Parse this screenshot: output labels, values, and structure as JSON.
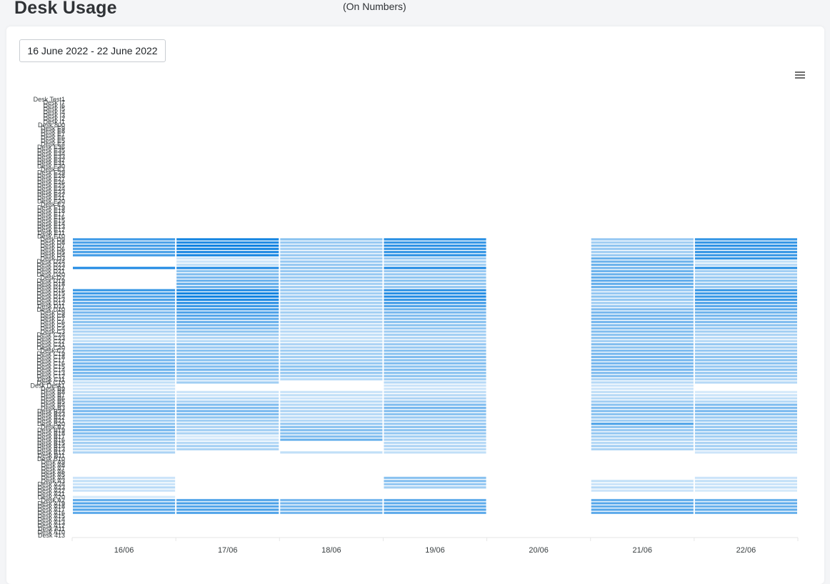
{
  "header": {
    "title": "Desk Usage",
    "subtitle": "(On Numbers)"
  },
  "filter": {
    "date_range": "16 June 2022 - 22 June 2022"
  },
  "toolbar": {
    "menu_icon": "hamburger-menu-icon"
  },
  "colors": {
    "base": "#0a7fe0",
    "empty": "#ffffff",
    "grid": "#e6e6e6"
  },
  "chart_data": {
    "type": "heatmap",
    "title": "",
    "xlabel": "",
    "ylabel": "",
    "legend": "none",
    "x": [
      "16/06",
      "17/06",
      "18/06",
      "19/06",
      "20/06",
      "21/06",
      "22/06"
    ],
    "rows": [
      "Desk Test1",
      "Desk I7",
      "Desk I6",
      "Desk I5",
      "Desk I4",
      "Desk I3",
      "Desk I2",
      "Desk I1",
      "Desk 800",
      "Desk E9",
      "Desk E8",
      "Desk E7",
      "Desk E6",
      "Desk E5",
      "Desk E4",
      "Desk E36",
      "Desk E35",
      "Desk E34",
      "Desk E33",
      "Desk E32",
      "Desk E31",
      "Desk E30",
      "Desk E3",
      "Desk E29",
      "Desk E28",
      "Desk E27",
      "Desk E26",
      "Desk E25",
      "Desk E24",
      "Desk E23",
      "Desk E22",
      "Desk E21",
      "Desk E20",
      "Desk E2",
      "Desk E19",
      "Desk E18",
      "Desk E17",
      "Desk E16",
      "Desk E15",
      "Desk E14",
      "Desk E13",
      "Desk E12",
      "Desk E11",
      "Desk E10",
      "Desk D9",
      "Desk D8",
      "Desk D7",
      "Desk D6",
      "Desk D5",
      "Desk D4",
      "Desk D3",
      "Desk D24",
      "Desk D23",
      "Desk D22",
      "Desk D21",
      "Desk D20",
      "Desk D2",
      "Desk D19",
      "Desk D18",
      "Desk D17",
      "Desk D16",
      "Desk D15",
      "Desk D14",
      "Desk D13",
      "Desk D12",
      "Desk D11",
      "Desk D10",
      "Desk C9",
      "Desk C8",
      "Desk C7",
      "Desk C6",
      "Desk C5",
      "Desk C4",
      "Desk C3",
      "Desk C24",
      "Desk C23",
      "Desk C22",
      "Desk C21",
      "Desk C20",
      "Desk C2",
      "Desk C19",
      "Desk C18",
      "Desk C17",
      "Desk C16",
      "Desk C15",
      "Desk C14",
      "Desk C13",
      "Desk C12",
      "Desk C11",
      "Desk C10",
      "Desk Desk1",
      "Desk B9",
      "Desk B8",
      "Desk B7",
      "Desk B6",
      "Desk B5",
      "Desk B4",
      "Desk B3",
      "Desk B24",
      "Desk B23",
      "Desk B22",
      "Desk B21",
      "Desk B20",
      "Desk B2",
      "Desk B19",
      "Desk B18",
      "Desk B17",
      "Desk B16",
      "Desk B15",
      "Desk B14",
      "Desk B13",
      "Desk B12",
      "Desk B11",
      "Desk B10",
      "Desk A9",
      "Desk A8",
      "Desk A7",
      "Desk A6",
      "Desk A5",
      "Desk A4",
      "Desk A3",
      "Desk A24",
      "Desk A23",
      "Desk A22",
      "Desk A21",
      "Desk A20",
      "Desk A2",
      "Desk A19",
      "Desk A18",
      "Desk A17",
      "Desk A16",
      "Desk A15",
      "Desk A14",
      "Desk A13",
      "Desk A12",
      "Desk A11",
      "Desk A10",
      "Desk 413"
    ],
    "values": [
      [
        0,
        0,
        0,
        0,
        0,
        0,
        0
      ],
      [
        0,
        0,
        0,
        0,
        0,
        0,
        0
      ],
      [
        0,
        0,
        0,
        0,
        0,
        0,
        0
      ],
      [
        0,
        0,
        0,
        0,
        0,
        0,
        0
      ],
      [
        0,
        0,
        0,
        0,
        0,
        0,
        0
      ],
      [
        0,
        0,
        0,
        0,
        0,
        0,
        0
      ],
      [
        0,
        0,
        0,
        0,
        0,
        0,
        0
      ],
      [
        0,
        0,
        0,
        0,
        0,
        0,
        0
      ],
      [
        0,
        0,
        0,
        0,
        0,
        0,
        0
      ],
      [
        0,
        0,
        0,
        0,
        0,
        0,
        0
      ],
      [
        0,
        0,
        0,
        0,
        0,
        0,
        0
      ],
      [
        0,
        0,
        0,
        0,
        0,
        0,
        0
      ],
      [
        0,
        0,
        0,
        0,
        0,
        0,
        0
      ],
      [
        0,
        0,
        0,
        0,
        0,
        0,
        0
      ],
      [
        0,
        0,
        0,
        0,
        0,
        0,
        0
      ],
      [
        0,
        0,
        0,
        0,
        0,
        0,
        0
      ],
      [
        0,
        0,
        0,
        0,
        0,
        0,
        0
      ],
      [
        0,
        0,
        0,
        0,
        0,
        0,
        0
      ],
      [
        0,
        0,
        0,
        0,
        0,
        0,
        0
      ],
      [
        0,
        0,
        0,
        0,
        0,
        0,
        0
      ],
      [
        0,
        0,
        0,
        0,
        0,
        0,
        0
      ],
      [
        0,
        0,
        0,
        0,
        0,
        0,
        0
      ],
      [
        0,
        0,
        0,
        0,
        0,
        0,
        0
      ],
      [
        0,
        0,
        0,
        0,
        0,
        0,
        0
      ],
      [
        0,
        0,
        0,
        0,
        0,
        0,
        0
      ],
      [
        0,
        0,
        0,
        0,
        0,
        0,
        0
      ],
      [
        0,
        0,
        0,
        0,
        0,
        0,
        0
      ],
      [
        0,
        0,
        0,
        0,
        0,
        0,
        0
      ],
      [
        0,
        0,
        0,
        0,
        0,
        0,
        0
      ],
      [
        0,
        0,
        0,
        0,
        0,
        0,
        0
      ],
      [
        0,
        0,
        0,
        0,
        0,
        0,
        0
      ],
      [
        0,
        0,
        0,
        0,
        0,
        0,
        0
      ],
      [
        0,
        0,
        0,
        0,
        0,
        0,
        0
      ],
      [
        0,
        0,
        0,
        0,
        0,
        0,
        0
      ],
      [
        0,
        0,
        0,
        0,
        0,
        0,
        0
      ],
      [
        0,
        0,
        0,
        0,
        0,
        0,
        0
      ],
      [
        0,
        0,
        0,
        0,
        0,
        0,
        0
      ],
      [
        0,
        0,
        0,
        0,
        0,
        0,
        0
      ],
      [
        0,
        0,
        0,
        0,
        0,
        0,
        0
      ],
      [
        0,
        0,
        0,
        0,
        0,
        0,
        0
      ],
      [
        0,
        0,
        0,
        0,
        0,
        0,
        0
      ],
      [
        0,
        0,
        0,
        0,
        0,
        0,
        0
      ],
      [
        0,
        0,
        0,
        0,
        0,
        0,
        0
      ],
      [
        0,
        0,
        0,
        0,
        0,
        0,
        0
      ],
      [
        0.75,
        0.95,
        0.4,
        0.85,
        0,
        0.35,
        0.8
      ],
      [
        0.7,
        0.9,
        0.35,
        0.8,
        0,
        0.3,
        0.8
      ],
      [
        0.75,
        1,
        0.35,
        0.85,
        0,
        0.4,
        0.85
      ],
      [
        0.7,
        0.95,
        0.3,
        0.8,
        0,
        0.35,
        0.75
      ],
      [
        0.7,
        0.9,
        0.3,
        0.8,
        0,
        0.3,
        0.8
      ],
      [
        0.75,
        0.95,
        0.35,
        0.85,
        0,
        0.35,
        0.8
      ],
      [
        0,
        0.1,
        0.3,
        0.35,
        0,
        0.55,
        0.8
      ],
      [
        0,
        0.1,
        0.35,
        0.3,
        0,
        0.55,
        0.15
      ],
      [
        0,
        0.15,
        0.35,
        0.3,
        0,
        0.55,
        0.2
      ],
      [
        0.9,
        0.9,
        0.4,
        0.9,
        0,
        0.5,
        0.85
      ],
      [
        0,
        0.4,
        0.35,
        0.35,
        0,
        0.55,
        0.3
      ],
      [
        0,
        0.45,
        0.35,
        0.35,
        0,
        0.55,
        0.3
      ],
      [
        0,
        0.5,
        0.35,
        0.4,
        0,
        0.6,
        0.35
      ],
      [
        0,
        0.55,
        0.35,
        0.4,
        0,
        0.6,
        0.4
      ],
      [
        0,
        0.6,
        0.3,
        0.4,
        0,
        0.6,
        0.4
      ],
      [
        0,
        0.55,
        0.3,
        0.35,
        0,
        0.55,
        0.35
      ],
      [
        0.8,
        0.9,
        0.35,
        0.85,
        0,
        0.35,
        0.8
      ],
      [
        0.75,
        0.95,
        0.3,
        0.85,
        0,
        0.35,
        0.75
      ],
      [
        0.7,
        1,
        0.35,
        0.9,
        0,
        0.4,
        0.8
      ],
      [
        0.7,
        0.9,
        0.3,
        0.8,
        0,
        0.35,
        0.75
      ],
      [
        0.65,
        0.85,
        0.3,
        0.75,
        0,
        0.3,
        0.7
      ],
      [
        0.6,
        0.8,
        0.3,
        0.7,
        0,
        0.35,
        0.65
      ],
      [
        0.55,
        0.75,
        0.25,
        0.55,
        0,
        0.45,
        0.6
      ],
      [
        0.5,
        0.7,
        0.3,
        0.5,
        0,
        0.5,
        0.55
      ],
      [
        0.45,
        0.65,
        0.25,
        0.45,
        0,
        0.5,
        0.5
      ],
      [
        0.4,
        0.6,
        0.25,
        0.45,
        0,
        0.5,
        0.45
      ],
      [
        0.4,
        0.55,
        0.25,
        0.4,
        0,
        0.5,
        0.45
      ],
      [
        0.35,
        0.5,
        0.2,
        0.4,
        0,
        0.45,
        0.4
      ],
      [
        0.3,
        0.45,
        0.2,
        0.35,
        0,
        0.45,
        0.35
      ],
      [
        0.25,
        0.4,
        0.2,
        0.3,
        0,
        0.45,
        0.3
      ],
      [
        0.2,
        0.3,
        0.15,
        0.3,
        0,
        0.4,
        0.25
      ],
      [
        0.15,
        0.25,
        0.15,
        0.25,
        0,
        0.4,
        0.2
      ],
      [
        0.15,
        0.2,
        0.15,
        0.25,
        0,
        0.3,
        0.2
      ],
      [
        0.35,
        0.4,
        0.25,
        0.35,
        0,
        0.45,
        0.35
      ],
      [
        0.35,
        0.35,
        0.25,
        0.35,
        0,
        0.4,
        0.3
      ],
      [
        0.4,
        0.4,
        0.3,
        0.4,
        0,
        0.45,
        0.35
      ],
      [
        0.45,
        0.4,
        0.3,
        0.4,
        0,
        0.5,
        0.35
      ],
      [
        0.45,
        0.45,
        0.3,
        0.45,
        0,
        0.5,
        0.4
      ],
      [
        0.5,
        0.4,
        0.3,
        0.4,
        0,
        0.5,
        0.4
      ],
      [
        0.5,
        0.45,
        0.35,
        0.45,
        0,
        0.5,
        0.4
      ],
      [
        0.55,
        0.45,
        0.4,
        0.4,
        0,
        0.5,
        0.35
      ],
      [
        0.55,
        0.5,
        0.4,
        0.45,
        0,
        0.5,
        0.4
      ],
      [
        0.5,
        0.4,
        0.35,
        0.4,
        0,
        0.45,
        0.35
      ],
      [
        0.45,
        0.4,
        0.3,
        0.4,
        0,
        0.45,
        0.35
      ],
      [
        0.3,
        0.25,
        0.2,
        0.3,
        0,
        0.25,
        0.25
      ],
      [
        0.15,
        0.3,
        0,
        0.2,
        0,
        0.2,
        0.2
      ],
      [
        0.1,
        0,
        0,
        0.1,
        0,
        0.1,
        0
      ],
      [
        0.1,
        0,
        0,
        0.1,
        0,
        0.1,
        0
      ],
      [
        0.15,
        0.1,
        0.1,
        0.15,
        0,
        0.15,
        0.05
      ],
      [
        0.2,
        0.1,
        0.15,
        0.2,
        0,
        0.2,
        0.1
      ],
      [
        0.3,
        0.2,
        0.1,
        0.25,
        0,
        0.2,
        0.15
      ],
      [
        0.35,
        0.25,
        0.2,
        0.3,
        0,
        0.3,
        0.2
      ],
      [
        0.4,
        0.45,
        0.2,
        0.45,
        0,
        0.4,
        0.45
      ],
      [
        0.45,
        0.45,
        0.25,
        0.5,
        0,
        0.45,
        0.45
      ],
      [
        0.5,
        0.5,
        0.25,
        0.45,
        0,
        0.45,
        0.5
      ],
      [
        0.45,
        0.45,
        0.2,
        0.4,
        0,
        0.4,
        0.4
      ],
      [
        0.35,
        0.4,
        0.2,
        0.35,
        0,
        0.35,
        0.35
      ],
      [
        0.3,
        0.3,
        0.2,
        0.3,
        0,
        0.3,
        0.3
      ],
      [
        0.4,
        0.3,
        0.35,
        0.35,
        0,
        0.7,
        0.35
      ],
      [
        0.45,
        0.25,
        0.4,
        0.4,
        0,
        0.4,
        0.35
      ],
      [
        0.5,
        0.3,
        0.45,
        0.4,
        0,
        0.35,
        0.4
      ],
      [
        0.45,
        0.25,
        0.4,
        0.35,
        0,
        0.35,
        0.35
      ],
      [
        0.35,
        0.05,
        0.45,
        0.3,
        0,
        0.3,
        0.3
      ],
      [
        0.3,
        0.1,
        0.55,
        0.25,
        0,
        0.25,
        0.25
      ],
      [
        0.3,
        0.2,
        0,
        0.2,
        0,
        0.2,
        0.25
      ],
      [
        0.25,
        0.3,
        0,
        0.25,
        0,
        0.3,
        0.3
      ],
      [
        0.2,
        0.25,
        0,
        0.2,
        0,
        0.25,
        0.25
      ],
      [
        0.25,
        0,
        0.15,
        0.15,
        0,
        0,
        0.1
      ],
      [
        0,
        0,
        0,
        0,
        0,
        0,
        0
      ],
      [
        0,
        0,
        0,
        0,
        0,
        0,
        0
      ],
      [
        0,
        0,
        0,
        0,
        0,
        0,
        0
      ],
      [
        0,
        0,
        0,
        0,
        0,
        0,
        0
      ],
      [
        0,
        0,
        0,
        0,
        0,
        0,
        0
      ],
      [
        0,
        0,
        0,
        0,
        0,
        0,
        0
      ],
      [
        0,
        0,
        0,
        0,
        0,
        0,
        0
      ],
      [
        0.1,
        0,
        0,
        0.4,
        0,
        0,
        0.1
      ],
      [
        0.15,
        0,
        0,
        0.45,
        0,
        0.15,
        0.15
      ],
      [
        0.1,
        0,
        0,
        0.35,
        0,
        0.1,
        0.1
      ],
      [
        0.2,
        0,
        0,
        0.3,
        0,
        0.2,
        0.15
      ],
      [
        0.1,
        0,
        0,
        0,
        0,
        0.1,
        0.05
      ],
      [
        0,
        0,
        0,
        0,
        0,
        0,
        0
      ],
      [
        0.05,
        0,
        0,
        0,
        0,
        0,
        0
      ],
      [
        0.6,
        0.65,
        0.5,
        0.6,
        0,
        0.6,
        0.55
      ],
      [
        0.65,
        0.7,
        0.5,
        0.6,
        0,
        0.65,
        0.6
      ],
      [
        0.6,
        0.65,
        0.5,
        0.6,
        0,
        0.6,
        0.55
      ],
      [
        0.65,
        0.7,
        0.55,
        0.65,
        0,
        0.65,
        0.6
      ],
      [
        0.6,
        0.65,
        0.5,
        0.6,
        0,
        0.6,
        0.55
      ],
      [
        0,
        0,
        0,
        0,
        0,
        0,
        0
      ],
      [
        0,
        0,
        0,
        0,
        0,
        0,
        0
      ],
      [
        0,
        0,
        0,
        0,
        0,
        0,
        0
      ],
      [
        0,
        0,
        0,
        0,
        0,
        0,
        0
      ],
      [
        0,
        0,
        0,
        0,
        0,
        0,
        0
      ],
      [
        0,
        0,
        0,
        0,
        0,
        0,
        0
      ]
    ]
  }
}
